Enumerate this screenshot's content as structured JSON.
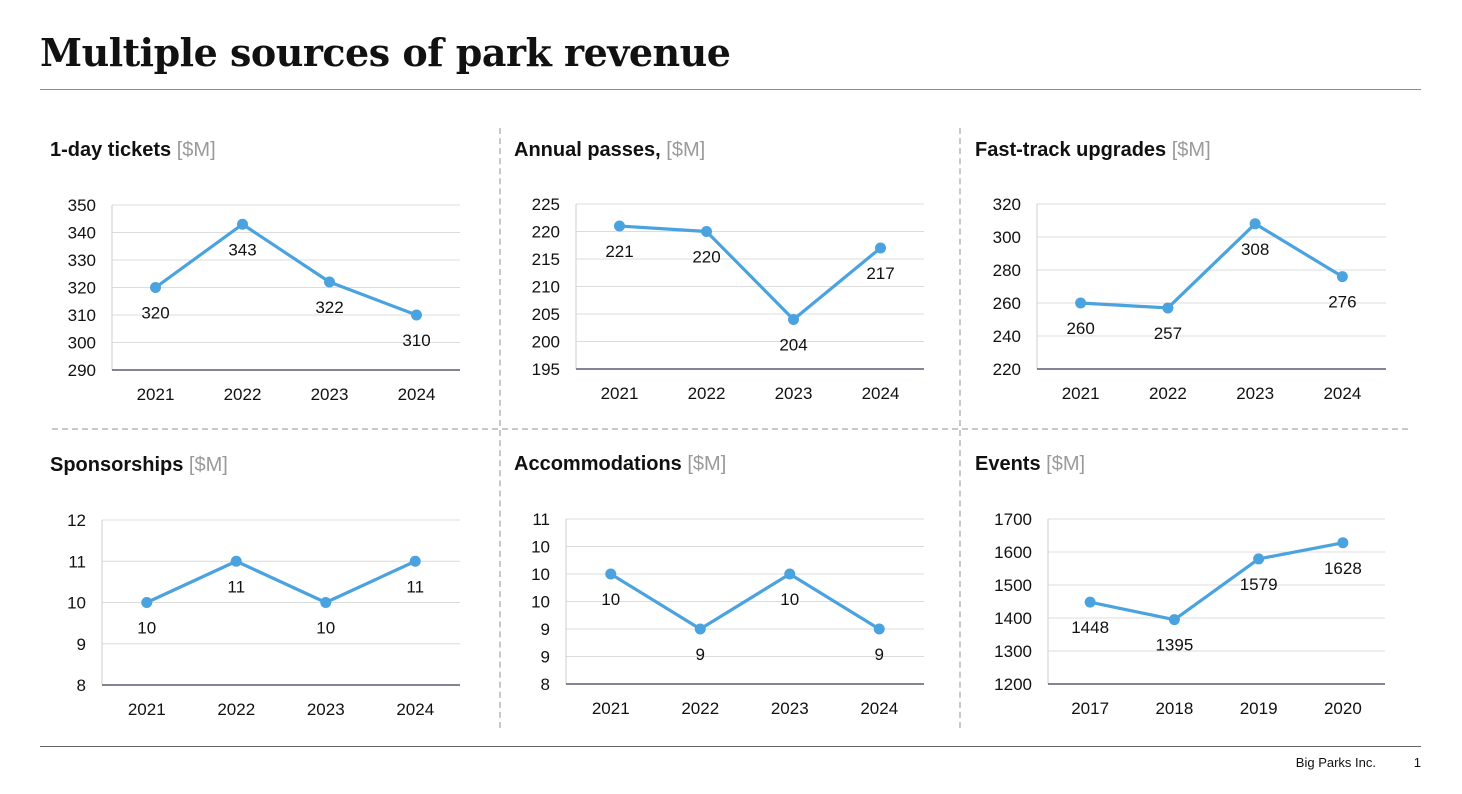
{
  "title": "Multiple sources of park revenue",
  "footer": {
    "company": "Big Parks Inc.",
    "page": "1"
  },
  "colors": {
    "line": "#4aa3df",
    "grid": "#dcdcdc",
    "axis": "#3a3a5a",
    "unit": "#9a9a9a"
  },
  "chart_data": [
    {
      "type": "line",
      "title": "1-day tickets",
      "unit": "[$M]",
      "categories": [
        "2021",
        "2022",
        "2023",
        "2024"
      ],
      "values": [
        320,
        343,
        322,
        310
      ],
      "labels": [
        "320",
        "343",
        "322",
        "310"
      ],
      "label_pos": [
        "below",
        "below",
        "above",
        "below"
      ],
      "yticks": [
        290,
        300,
        310,
        320,
        330,
        340,
        350
      ],
      "ytick_labels": [
        "290",
        "300",
        "310",
        "320",
        "330",
        "340",
        "350"
      ],
      "ylim": [
        290,
        350
      ],
      "xlabel": "",
      "ylabel": "",
      "grid": true,
      "legend": "none"
    },
    {
      "type": "line",
      "title": "Annual passes,",
      "unit": "[$M]",
      "categories": [
        "2021",
        "2022",
        "2023",
        "2024"
      ],
      "values": [
        221,
        220,
        204,
        217
      ],
      "labels": [
        "221",
        "220",
        "204",
        "217"
      ],
      "label_pos": [
        "below",
        "below",
        "below",
        "below"
      ],
      "yticks": [
        195,
        200,
        205,
        210,
        215,
        220,
        225
      ],
      "ytick_labels": [
        "195",
        "200",
        "205",
        "210",
        "215",
        "220",
        "225"
      ],
      "ylim": [
        195,
        225
      ],
      "xlabel": "",
      "ylabel": "",
      "grid": true,
      "legend": "none"
    },
    {
      "type": "line",
      "title": "Fast-track upgrades",
      "unit": "[$M]",
      "categories": [
        "2021",
        "2022",
        "2023",
        "2024"
      ],
      "values": [
        260,
        257,
        308,
        276
      ],
      "labels": [
        "260",
        "257",
        "308",
        "276"
      ],
      "label_pos": [
        "below",
        "below",
        "below",
        "below"
      ],
      "yticks": [
        220,
        240,
        260,
        280,
        300,
        320
      ],
      "ytick_labels": [
        "220",
        "240",
        "260",
        "280",
        "300",
        "320"
      ],
      "ylim": [
        220,
        320
      ],
      "xlabel": "",
      "ylabel": "",
      "grid": true,
      "legend": "none"
    },
    {
      "type": "line",
      "title": "Sponsorships",
      "unit": "[$M]",
      "categories": [
        "2021",
        "2022",
        "2023",
        "2024"
      ],
      "values": [
        10,
        11,
        10,
        11
      ],
      "labels": [
        "10",
        "11",
        "10",
        "11"
      ],
      "label_pos": [
        "below",
        "below",
        "below",
        "below"
      ],
      "yticks": [
        8,
        9,
        10,
        11,
        12
      ],
      "ytick_labels": [
        "8",
        "9",
        "10",
        "11",
        "12"
      ],
      "ylim": [
        8,
        12
      ],
      "xlabel": "",
      "ylabel": "",
      "grid": true,
      "legend": "none"
    },
    {
      "type": "line",
      "title": "Accommodations",
      "unit": "[$M]",
      "categories": [
        "2021",
        "2022",
        "2023",
        "2024"
      ],
      "values": [
        10,
        9,
        10,
        9
      ],
      "labels": [
        "10",
        "9",
        "10",
        "9"
      ],
      "label_pos": [
        "below",
        "below",
        "below",
        "below"
      ],
      "yticks": [
        8,
        8.5,
        9,
        9.5,
        10,
        10.5,
        11
      ],
      "ytick_labels": [
        "8",
        "9",
        "9",
        "10",
        "10",
        "10",
        "11"
      ],
      "ylim": [
        8,
        11
      ],
      "xlabel": "",
      "ylabel": "",
      "grid": true,
      "legend": "none"
    },
    {
      "type": "line",
      "title": "Events",
      "unit": "[$M]",
      "categories": [
        "2017",
        "2018",
        "2019",
        "2020"
      ],
      "values": [
        1448,
        1395,
        1579,
        1628
      ],
      "labels": [
        "1448",
        "1395",
        "1579",
        "1628"
      ],
      "label_pos": [
        "below",
        "below",
        "below",
        "below"
      ],
      "yticks": [
        1200,
        1300,
        1400,
        1500,
        1600,
        1700
      ],
      "ytick_labels": [
        "1200",
        "1300",
        "1400",
        "1500",
        "1600",
        "1700"
      ],
      "ylim": [
        1200,
        1700
      ],
      "xlabel": "",
      "ylabel": "",
      "grid": true,
      "legend": "none"
    }
  ]
}
